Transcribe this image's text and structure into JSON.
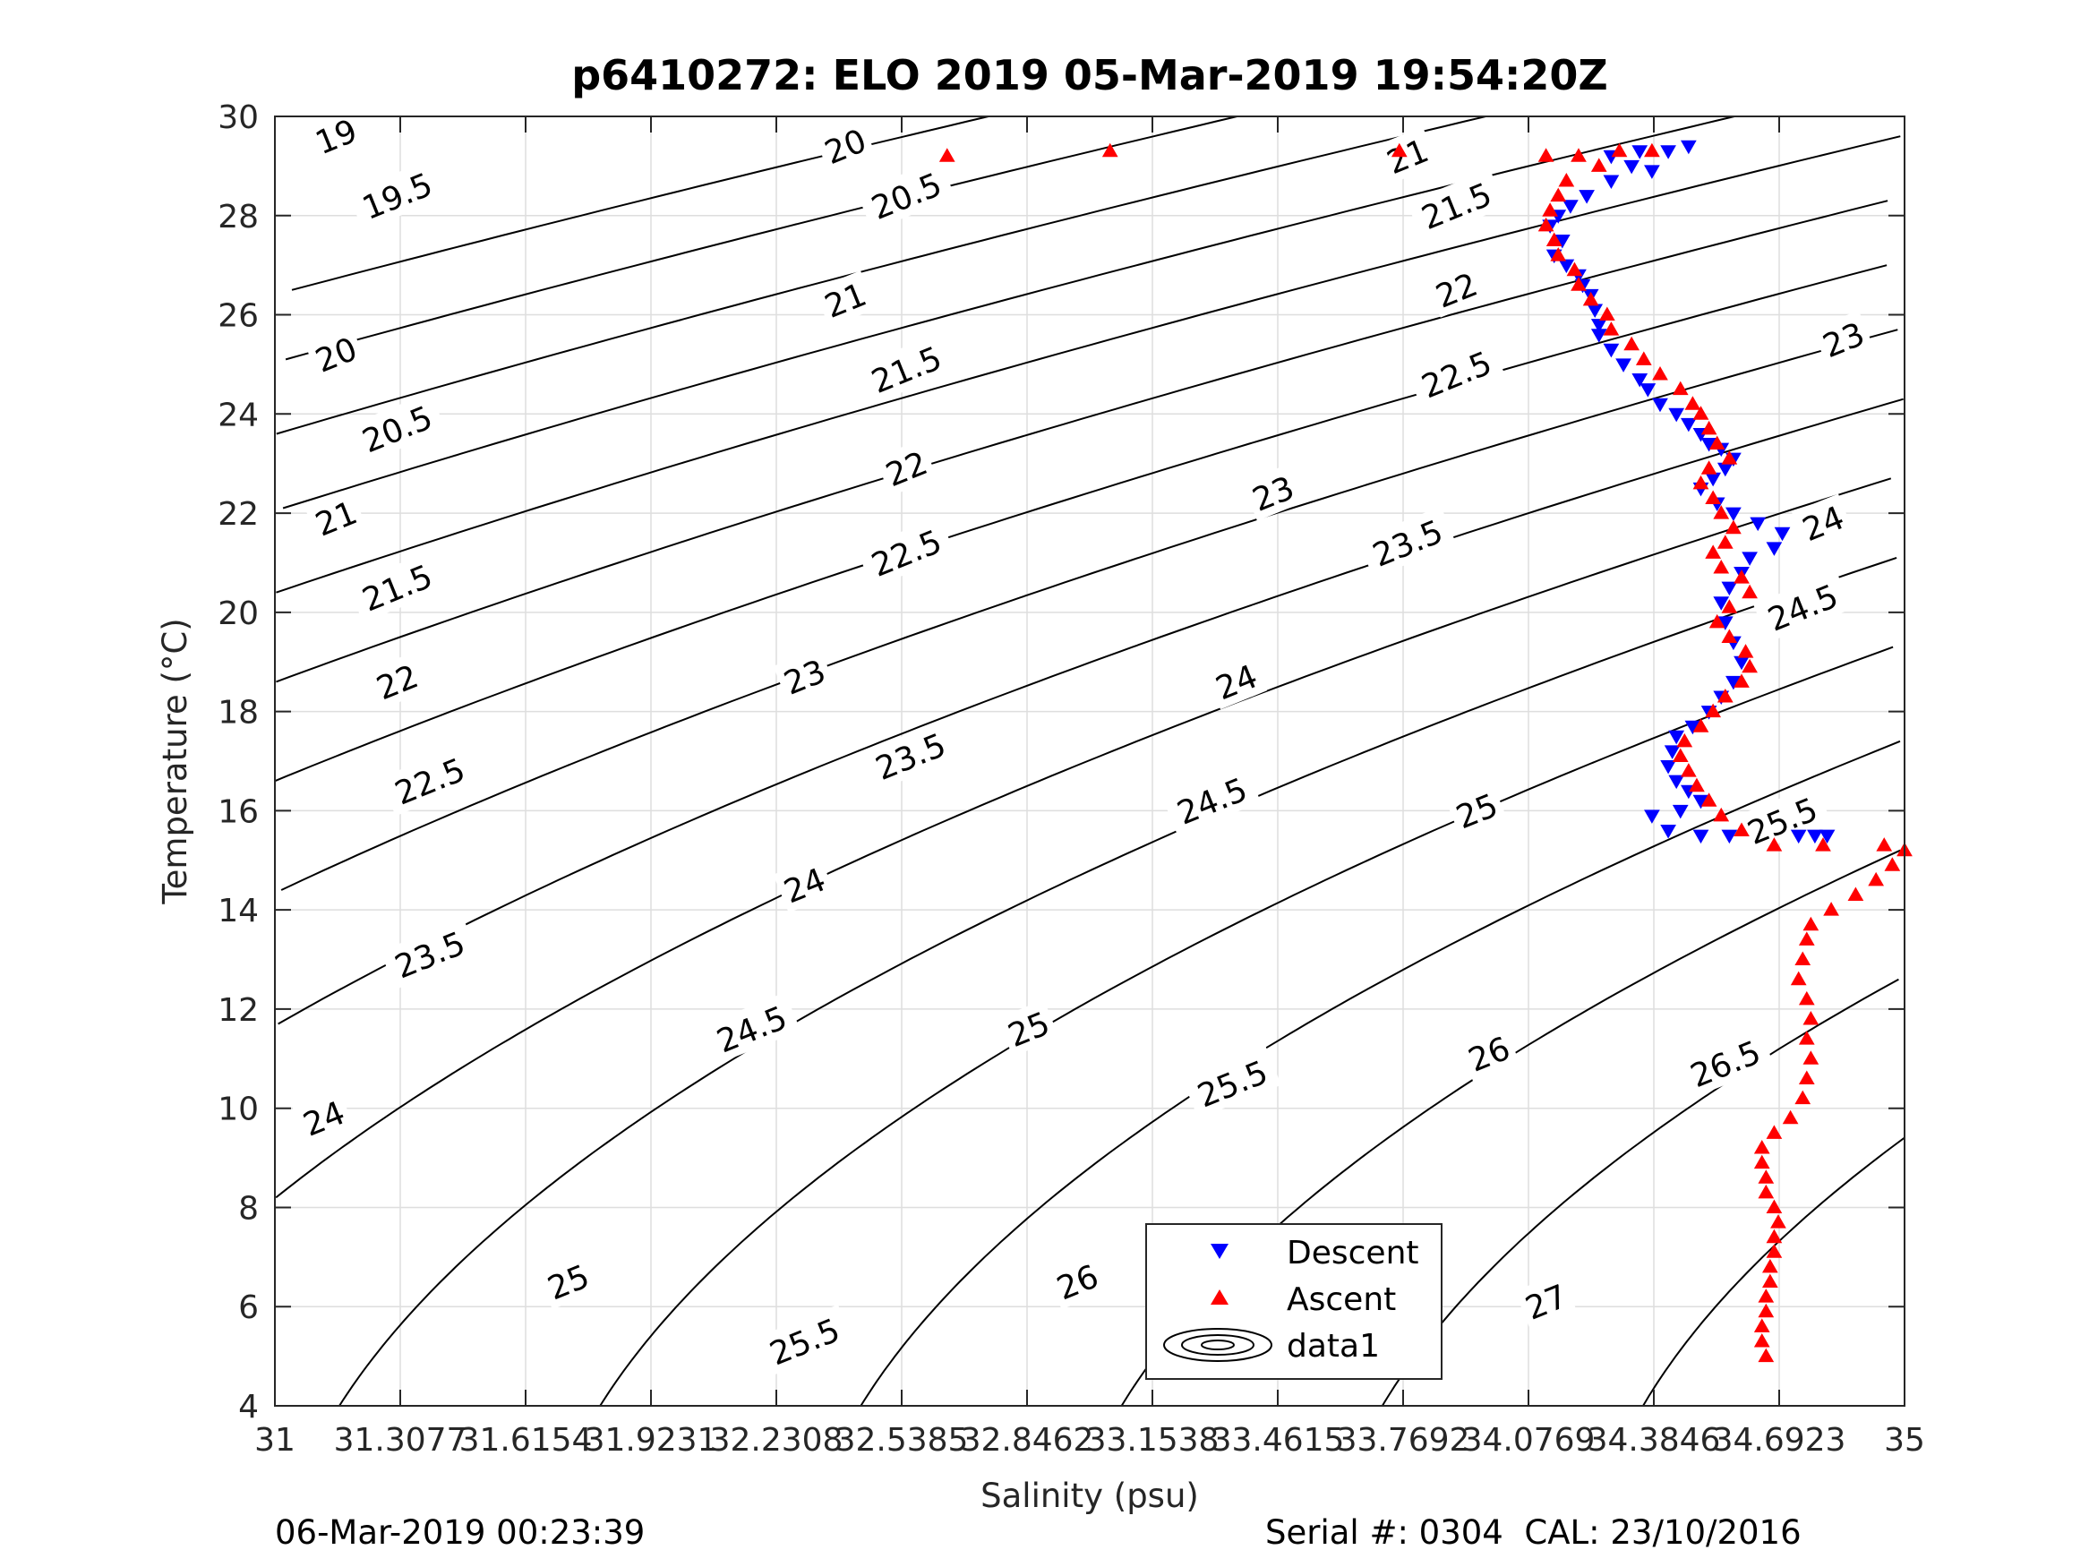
{
  "chart_data": {
    "type": "scatter",
    "title": "p6410272: ELO 2019 05-Mar-2019 19:54:20Z",
    "xlabel": "Salinity (psu)",
    "ylabel": "Temperature (°C)",
    "xlim": [
      31,
      35
    ],
    "ylim": [
      4,
      30
    ],
    "grid": true,
    "x_tick_labels": [
      "31",
      "31.3077",
      "31.6154",
      "31.9231",
      "32.2308",
      "32.5385",
      "32.8462",
      "33.1538",
      "33.4615",
      "33.7692",
      "34.0769",
      "34.3846",
      "34.6923",
      "35"
    ],
    "y_tick_labels": [
      "4",
      "6",
      "8",
      "10",
      "12",
      "14",
      "16",
      "18",
      "20",
      "22",
      "24",
      "26",
      "28",
      "30"
    ],
    "legend": {
      "placement": "bottom-center",
      "entries": [
        {
          "label": "Descent",
          "marker": "triangle-down",
          "color": "#0000ff"
        },
        {
          "label": "Ascent",
          "marker": "triangle-up",
          "color": "#ff0000"
        },
        {
          "label": "data1",
          "marker": "contour",
          "color": "#000000"
        }
      ]
    },
    "isopycnals": {
      "color": "#000000",
      "levels": [
        19,
        19.5,
        20,
        20.5,
        21,
        21.5,
        22,
        22.5,
        23,
        23.5,
        24,
        24.5,
        25,
        25.5,
        26,
        26.5,
        27
      ],
      "labels": [
        {
          "text": "19",
          "s": 31.15,
          "t": 29.6
        },
        {
          "text": "19.5",
          "s": 31.3,
          "t": 28.4
        },
        {
          "text": "20",
          "s": 31.15,
          "t": 25.2
        },
        {
          "text": "20.5",
          "s": 31.3,
          "t": 23.7
        },
        {
          "text": "21",
          "s": 31.15,
          "t": 21.9
        },
        {
          "text": "21.5",
          "s": 31.3,
          "t": 20.5
        },
        {
          "text": "22",
          "s": 31.3,
          "t": 18.6
        },
        {
          "text": "22.5",
          "s": 31.38,
          "t": 16.6
        },
        {
          "text": "23.5",
          "s": 31.38,
          "t": 13.1
        },
        {
          "text": "24",
          "s": 31.12,
          "t": 9.8
        },
        {
          "text": "25",
          "s": 31.72,
          "t": 6.5
        },
        {
          "text": "25.5",
          "s": 32.3,
          "t": 5.3
        },
        {
          "text": "26",
          "s": 32.97,
          "t": 6.5
        },
        {
          "text": "26.5",
          "s": 33.38,
          "t": 5.2
        },
        {
          "text": "27",
          "s": 34.12,
          "t": 6.1
        },
        {
          "text": "20",
          "s": 32.4,
          "t": 29.4
        },
        {
          "text": "20.5",
          "s": 32.55,
          "t": 28.4
        },
        {
          "text": "21",
          "s": 32.4,
          "t": 26.3
        },
        {
          "text": "21.5",
          "s": 32.55,
          "t": 24.9
        },
        {
          "text": "22",
          "s": 32.55,
          "t": 22.9
        },
        {
          "text": "22.5",
          "s": 32.55,
          "t": 21.2
        },
        {
          "text": "23",
          "s": 32.3,
          "t": 18.7
        },
        {
          "text": "23.5",
          "s": 32.56,
          "t": 17.1
        },
        {
          "text": "24",
          "s": 32.3,
          "t": 14.5
        },
        {
          "text": "24.5",
          "s": 32.17,
          "t": 11.6
        },
        {
          "text": "25",
          "s": 32.85,
          "t": 11.6
        },
        {
          "text": "25.5",
          "s": 33.35,
          "t": 10.5
        },
        {
          "text": "26",
          "s": 33.98,
          "t": 11.1
        },
        {
          "text": "26.5",
          "s": 34.56,
          "t": 10.9
        },
        {
          "text": "21",
          "s": 33.78,
          "t": 29.2
        },
        {
          "text": "21.5",
          "s": 33.9,
          "t": 28.2
        },
        {
          "text": "22",
          "s": 33.9,
          "t": 26.5
        },
        {
          "text": "22.5",
          "s": 33.9,
          "t": 24.8
        },
        {
          "text": "23",
          "s": 33.45,
          "t": 22.4
        },
        {
          "text": "23.5",
          "s": 33.78,
          "t": 21.4
        },
        {
          "text": "24",
          "s": 33.36,
          "t": 18.6
        },
        {
          "text": "24.5",
          "s": 33.3,
          "t": 16.2
        },
        {
          "text": "25",
          "s": 33.95,
          "t": 16.0
        },
        {
          "text": "25.5",
          "s": 34.7,
          "t": 15.8
        },
        {
          "text": "23",
          "s": 34.85,
          "t": 25.5
        },
        {
          "text": "24",
          "s": 34.8,
          "t": 21.8
        },
        {
          "text": "24.5",
          "s": 34.75,
          "t": 20.1
        }
      ]
    },
    "series": [
      {
        "name": "Descent",
        "marker": "triangle-down",
        "color": "#0000ff",
        "points": [
          [
            34.47,
            29.4
          ],
          [
            34.42,
            29.3
          ],
          [
            34.35,
            29.3
          ],
          [
            34.28,
            29.2
          ],
          [
            34.33,
            29.0
          ],
          [
            34.38,
            28.9
          ],
          [
            34.28,
            28.7
          ],
          [
            34.22,
            28.4
          ],
          [
            34.18,
            28.2
          ],
          [
            34.15,
            28.0
          ],
          [
            34.13,
            27.8
          ],
          [
            34.16,
            27.5
          ],
          [
            34.14,
            27.2
          ],
          [
            34.17,
            27.0
          ],
          [
            34.2,
            26.8
          ],
          [
            34.21,
            26.6
          ],
          [
            34.23,
            26.4
          ],
          [
            34.24,
            26.1
          ],
          [
            34.25,
            25.8
          ],
          [
            34.25,
            25.6
          ],
          [
            34.28,
            25.3
          ],
          [
            34.31,
            25.0
          ],
          [
            34.35,
            24.7
          ],
          [
            34.37,
            24.5
          ],
          [
            34.4,
            24.2
          ],
          [
            34.44,
            24.0
          ],
          [
            34.47,
            23.8
          ],
          [
            34.5,
            23.6
          ],
          [
            34.52,
            23.4
          ],
          [
            34.55,
            23.3
          ],
          [
            34.58,
            23.1
          ],
          [
            34.56,
            22.9
          ],
          [
            34.53,
            22.7
          ],
          [
            34.5,
            22.5
          ],
          [
            34.54,
            22.2
          ],
          [
            34.58,
            22.0
          ],
          [
            34.64,
            21.8
          ],
          [
            34.7,
            21.6
          ],
          [
            34.68,
            21.3
          ],
          [
            34.62,
            21.1
          ],
          [
            34.6,
            20.8
          ],
          [
            34.57,
            20.5
          ],
          [
            34.55,
            20.2
          ],
          [
            34.56,
            19.8
          ],
          [
            34.58,
            19.4
          ],
          [
            34.6,
            19.0
          ],
          [
            34.58,
            18.6
          ],
          [
            34.55,
            18.3
          ],
          [
            34.52,
            18.0
          ],
          [
            34.48,
            17.7
          ],
          [
            34.44,
            17.5
          ],
          [
            34.43,
            17.2
          ],
          [
            34.42,
            16.9
          ],
          [
            34.44,
            16.6
          ],
          [
            34.47,
            16.4
          ],
          [
            34.5,
            16.2
          ],
          [
            34.45,
            16.0
          ],
          [
            34.38,
            15.9
          ],
          [
            34.42,
            15.6
          ],
          [
            34.5,
            15.5
          ],
          [
            34.57,
            15.5
          ],
          [
            34.74,
            15.5
          ],
          [
            34.78,
            15.5
          ],
          [
            34.81,
            15.5
          ]
        ]
      },
      {
        "name": "Ascent",
        "marker": "triangle-up",
        "color": "#ff0000",
        "points": [
          [
            32.65,
            29.2
          ],
          [
            33.05,
            29.3
          ],
          [
            33.76,
            29.3
          ],
          [
            34.12,
            29.2
          ],
          [
            34.2,
            29.2
          ],
          [
            34.3,
            29.3
          ],
          [
            34.38,
            29.3
          ],
          [
            34.25,
            29.0
          ],
          [
            34.17,
            28.7
          ],
          [
            34.15,
            28.4
          ],
          [
            34.13,
            28.1
          ],
          [
            34.12,
            27.8
          ],
          [
            34.14,
            27.5
          ],
          [
            34.15,
            27.2
          ],
          [
            34.19,
            26.9
          ],
          [
            34.2,
            26.6
          ],
          [
            34.23,
            26.3
          ],
          [
            34.27,
            26.0
          ],
          [
            34.28,
            25.7
          ],
          [
            34.33,
            25.4
          ],
          [
            34.36,
            25.1
          ],
          [
            34.4,
            24.8
          ],
          [
            34.45,
            24.5
          ],
          [
            34.48,
            24.2
          ],
          [
            34.5,
            24.0
          ],
          [
            34.52,
            23.7
          ],
          [
            34.54,
            23.4
          ],
          [
            34.57,
            23.1
          ],
          [
            34.52,
            22.9
          ],
          [
            34.5,
            22.6
          ],
          [
            34.53,
            22.3
          ],
          [
            34.55,
            22.0
          ],
          [
            34.58,
            21.7
          ],
          [
            34.56,
            21.4
          ],
          [
            34.53,
            21.2
          ],
          [
            34.55,
            20.9
          ],
          [
            34.6,
            20.7
          ],
          [
            34.62,
            20.4
          ],
          [
            34.57,
            20.1
          ],
          [
            34.54,
            19.8
          ],
          [
            34.57,
            19.5
          ],
          [
            34.61,
            19.2
          ],
          [
            34.62,
            18.9
          ],
          [
            34.6,
            18.6
          ],
          [
            34.56,
            18.3
          ],
          [
            34.53,
            18.0
          ],
          [
            34.5,
            17.7
          ],
          [
            34.46,
            17.4
          ],
          [
            34.45,
            17.1
          ],
          [
            34.47,
            16.8
          ],
          [
            34.49,
            16.5
          ],
          [
            34.52,
            16.2
          ],
          [
            34.55,
            15.9
          ],
          [
            34.6,
            15.6
          ],
          [
            34.68,
            15.3
          ],
          [
            34.8,
            15.3
          ],
          [
            34.95,
            15.3
          ],
          [
            35.0,
            15.2
          ],
          [
            34.97,
            14.9
          ],
          [
            34.93,
            14.6
          ],
          [
            34.88,
            14.3
          ],
          [
            34.82,
            14.0
          ],
          [
            34.77,
            13.7
          ],
          [
            34.76,
            13.4
          ],
          [
            34.75,
            13.0
          ],
          [
            34.74,
            12.6
          ],
          [
            34.76,
            12.2
          ],
          [
            34.77,
            11.8
          ],
          [
            34.76,
            11.4
          ],
          [
            34.77,
            11.0
          ],
          [
            34.76,
            10.6
          ],
          [
            34.75,
            10.2
          ],
          [
            34.72,
            9.8
          ],
          [
            34.68,
            9.5
          ],
          [
            34.65,
            9.2
          ],
          [
            34.65,
            8.9
          ],
          [
            34.66,
            8.6
          ],
          [
            34.66,
            8.3
          ],
          [
            34.68,
            8.0
          ],
          [
            34.69,
            7.7
          ],
          [
            34.68,
            7.4
          ],
          [
            34.68,
            7.1
          ],
          [
            34.67,
            6.8
          ],
          [
            34.67,
            6.5
          ],
          [
            34.66,
            6.2
          ],
          [
            34.66,
            5.9
          ],
          [
            34.65,
            5.6
          ],
          [
            34.65,
            5.3
          ],
          [
            34.66,
            5.0
          ]
        ]
      }
    ]
  },
  "footer": {
    "left": "06-Mar-2019 00:23:39",
    "right": "Serial #: 0304  CAL: 23/10/2016"
  }
}
